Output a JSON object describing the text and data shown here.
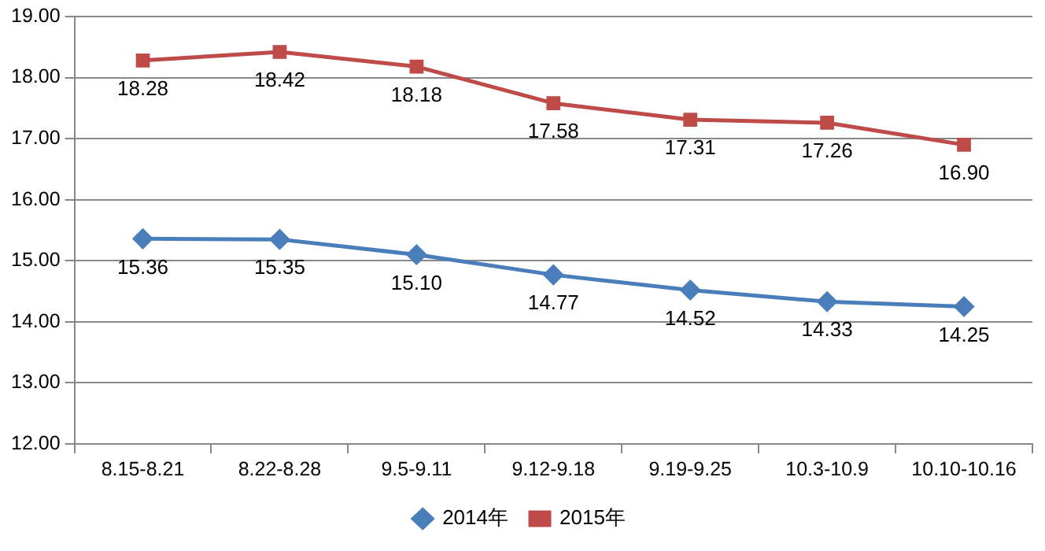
{
  "chart_data": {
    "type": "line",
    "categories": [
      "8.15-8.21",
      "8.22-8.28",
      "9.5-9.11",
      "9.12-9.18",
      "9.19-9.25",
      "10.3-10.9",
      "10.10-10.16"
    ],
    "series": [
      {
        "name": "2014年",
        "color": "#4a7ebb",
        "marker": "diamond",
        "values": [
          15.36,
          15.35,
          15.1,
          14.77,
          14.52,
          14.33,
          14.25
        ],
        "value_labels": [
          "15.36",
          "15.35",
          "15.10",
          "14.77",
          "14.52",
          "14.33",
          "14.25"
        ]
      },
      {
        "name": "2015年",
        "color": "#be4b48",
        "marker": "square",
        "values": [
          18.28,
          18.42,
          18.18,
          17.58,
          17.31,
          17.26,
          16.9
        ],
        "value_labels": [
          "18.28",
          "18.42",
          "18.18",
          "17.58",
          "17.31",
          "17.26",
          "16.90"
        ]
      }
    ],
    "ylim": [
      12,
      19
    ],
    "yticks": [
      {
        "value": 12,
        "label": "12.00"
      },
      {
        "value": 13,
        "label": "13.00"
      },
      {
        "value": 14,
        "label": "14.00"
      },
      {
        "value": 15,
        "label": "15.00"
      },
      {
        "value": 16,
        "label": "16.00"
      },
      {
        "value": 17,
        "label": "17.00"
      },
      {
        "value": 18,
        "label": "18.00"
      },
      {
        "value": 19,
        "label": "19.00"
      }
    ],
    "grid": "y",
    "legend": "bottom",
    "line_style": "solid"
  }
}
